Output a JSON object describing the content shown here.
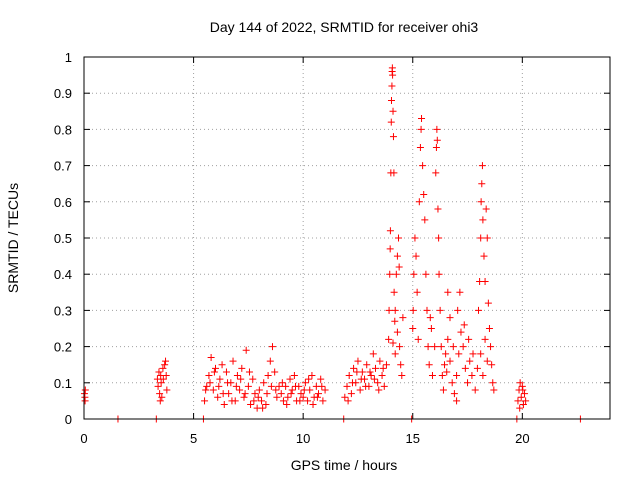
{
  "chart_data": {
    "type": "scatter",
    "title": "Day 144 of 2022, SRMTID for receiver ohi3",
    "xlabel": "GPS time / hours",
    "ylabel": "SRMTID / TECUs",
    "xlim": [
      0,
      24
    ],
    "ylim": [
      0,
      1
    ],
    "xticks": [
      0,
      5,
      10,
      15,
      20
    ],
    "xtick_labels": [
      "0",
      "5",
      "10",
      "15",
      "20"
    ],
    "yticks": [
      0,
      0.1,
      0.2,
      0.3,
      0.4,
      0.5,
      0.6,
      0.7,
      0.8,
      0.9,
      1
    ],
    "ytick_labels": [
      "0",
      "0.1",
      "0.2",
      "0.3",
      "0.4",
      "0.5",
      "0.6",
      "0.7",
      "0.8",
      "0.9",
      "1"
    ],
    "grid": true,
    "marker": "+",
    "color": "#ff0000",
    "series": [
      {
        "name": "SRMTID",
        "points": [
          [
            0.02,
            0.07
          ],
          [
            0.04,
            0.06
          ],
          [
            0.06,
            0.08
          ],
          [
            0.05,
            0.05
          ],
          [
            1.55,
            0.0
          ],
          [
            3.3,
            0.0
          ],
          [
            5.45,
            0.0
          ],
          [
            11.85,
            0.0
          ],
          [
            14.95,
            0.0
          ],
          [
            19.75,
            0.0
          ],
          [
            22.65,
            0.0
          ],
          [
            3.35,
            0.11
          ],
          [
            3.38,
            0.09
          ],
          [
            3.42,
            0.13
          ],
          [
            3.45,
            0.07
          ],
          [
            3.5,
            0.12
          ],
          [
            3.52,
            0.1
          ],
          [
            3.55,
            0.06
          ],
          [
            3.6,
            0.14
          ],
          [
            3.62,
            0.11
          ],
          [
            3.68,
            0.15
          ],
          [
            3.72,
            0.16
          ],
          [
            3.75,
            0.12
          ],
          [
            3.78,
            0.08
          ],
          [
            3.48,
            0.05
          ],
          [
            5.5,
            0.05
          ],
          [
            5.6,
            0.09
          ],
          [
            5.7,
            0.12
          ],
          [
            5.8,
            0.17
          ],
          [
            5.9,
            0.08
          ],
          [
            6.0,
            0.14
          ],
          [
            6.1,
            0.06
          ],
          [
            6.2,
            0.11
          ],
          [
            6.3,
            0.15
          ],
          [
            6.4,
            0.04
          ],
          [
            6.5,
            0.13
          ],
          [
            6.6,
            0.07
          ],
          [
            6.7,
            0.1
          ],
          [
            6.8,
            0.16
          ],
          [
            6.9,
            0.05
          ],
          [
            7.0,
            0.12
          ],
          [
            7.1,
            0.08
          ],
          [
            7.2,
            0.14
          ],
          [
            7.3,
            0.06
          ],
          [
            7.4,
            0.19
          ],
          [
            7.5,
            0.09
          ],
          [
            7.6,
            0.04
          ],
          [
            7.7,
            0.11
          ],
          [
            7.8,
            0.07
          ],
          [
            7.9,
            0.03
          ],
          [
            8.0,
            0.08
          ],
          [
            8.1,
            0.05
          ],
          [
            8.2,
            0.1
          ],
          [
            8.3,
            0.04
          ],
          [
            8.4,
            0.12
          ],
          [
            8.5,
            0.16
          ],
          [
            8.6,
            0.2
          ],
          [
            8.7,
            0.13
          ],
          [
            8.8,
            0.06
          ],
          [
            8.9,
            0.09
          ],
          [
            5.55,
            0.08
          ],
          [
            5.75,
            0.1
          ],
          [
            5.95,
            0.13
          ],
          [
            6.15,
            0.09
          ],
          [
            6.35,
            0.07
          ],
          [
            6.55,
            0.1
          ],
          [
            6.75,
            0.05
          ],
          [
            6.95,
            0.09
          ],
          [
            7.15,
            0.11
          ],
          [
            7.35,
            0.07
          ],
          [
            7.55,
            0.13
          ],
          [
            7.75,
            0.05
          ],
          [
            7.95,
            0.06
          ],
          [
            8.15,
            0.03
          ],
          [
            8.35,
            0.07
          ],
          [
            8.55,
            0.09
          ],
          [
            8.75,
            0.08
          ],
          [
            9.0,
            0.07
          ],
          [
            9.1,
            0.05
          ],
          [
            9.2,
            0.09
          ],
          [
            9.3,
            0.06
          ],
          [
            9.4,
            0.11
          ],
          [
            9.5,
            0.08
          ],
          [
            9.6,
            0.12
          ],
          [
            9.7,
            0.05
          ],
          [
            9.8,
            0.09
          ],
          [
            9.9,
            0.07
          ],
          [
            10.0,
            0.06
          ],
          [
            10.1,
            0.1
          ],
          [
            10.2,
            0.05
          ],
          [
            10.3,
            0.08
          ],
          [
            10.4,
            0.12
          ],
          [
            10.5,
            0.06
          ],
          [
            10.6,
            0.09
          ],
          [
            10.7,
            0.07
          ],
          [
            10.8,
            0.11
          ],
          [
            10.9,
            0.05
          ],
          [
            11.0,
            0.08
          ],
          [
            9.05,
            0.1
          ],
          [
            9.25,
            0.04
          ],
          [
            9.45,
            0.07
          ],
          [
            9.65,
            0.09
          ],
          [
            9.85,
            0.05
          ],
          [
            10.05,
            0.08
          ],
          [
            10.25,
            0.11
          ],
          [
            10.45,
            0.04
          ],
          [
            10.65,
            0.06
          ],
          [
            10.85,
            0.09
          ],
          [
            11.9,
            0.06
          ],
          [
            12.0,
            0.09
          ],
          [
            12.1,
            0.12
          ],
          [
            12.2,
            0.07
          ],
          [
            12.3,
            0.14
          ],
          [
            12.4,
            0.1
          ],
          [
            12.5,
            0.16
          ],
          [
            12.6,
            0.08
          ],
          [
            12.7,
            0.13
          ],
          [
            12.8,
            0.11
          ],
          [
            12.9,
            0.15
          ],
          [
            13.0,
            0.09
          ],
          [
            13.1,
            0.12
          ],
          [
            13.2,
            0.18
          ],
          [
            13.3,
            0.14
          ],
          [
            13.4,
            0.1
          ],
          [
            13.5,
            0.16
          ],
          [
            13.6,
            0.12
          ],
          [
            13.7,
            0.09
          ],
          [
            13.8,
            0.15
          ],
          [
            12.05,
            0.05
          ],
          [
            12.25,
            0.1
          ],
          [
            12.45,
            0.13
          ],
          [
            12.65,
            0.11
          ],
          [
            12.85,
            0.09
          ],
          [
            13.05,
            0.13
          ],
          [
            13.25,
            0.11
          ],
          [
            13.45,
            0.08
          ],
          [
            13.65,
            0.14
          ],
          [
            13.9,
            0.22
          ],
          [
            13.92,
            0.3
          ],
          [
            13.95,
            0.4
          ],
          [
            13.97,
            0.47
          ],
          [
            13.98,
            0.52
          ],
          [
            14.0,
            0.68
          ],
          [
            14.02,
            0.82
          ],
          [
            14.03,
            0.88
          ],
          [
            14.05,
            0.92
          ],
          [
            14.06,
            0.96
          ],
          [
            14.07,
            0.97
          ],
          [
            14.08,
            0.95
          ],
          [
            14.1,
            0.85
          ],
          [
            14.12,
            0.78
          ],
          [
            14.14,
            0.68
          ],
          [
            14.15,
            0.35
          ],
          [
            14.18,
            0.27
          ],
          [
            14.2,
            0.3
          ],
          [
            14.25,
            0.4
          ],
          [
            14.3,
            0.45
          ],
          [
            14.35,
            0.5
          ],
          [
            14.38,
            0.42
          ],
          [
            14.4,
            0.2
          ],
          [
            14.45,
            0.15
          ],
          [
            14.5,
            0.12
          ],
          [
            14.55,
            0.28
          ],
          [
            14.3,
            0.24
          ],
          [
            14.2,
            0.18
          ],
          [
            14.1,
            0.21
          ],
          [
            15.0,
            0.25
          ],
          [
            15.02,
            0.3
          ],
          [
            15.05,
            0.4
          ],
          [
            15.1,
            0.5
          ],
          [
            15.15,
            0.45
          ],
          [
            15.2,
            0.35
          ],
          [
            15.25,
            0.22
          ],
          [
            15.3,
            0.6
          ],
          [
            15.35,
            0.75
          ],
          [
            15.38,
            0.8
          ],
          [
            15.4,
            0.83
          ],
          [
            15.45,
            0.7
          ],
          [
            15.5,
            0.62
          ],
          [
            15.55,
            0.55
          ],
          [
            15.6,
            0.4
          ],
          [
            15.65,
            0.3
          ],
          [
            15.7,
            0.2
          ],
          [
            15.75,
            0.15
          ],
          [
            15.8,
            0.28
          ],
          [
            15.85,
            0.25
          ],
          [
            15.9,
            0.12
          ],
          [
            16.0,
            0.2
          ],
          [
            16.05,
            0.68
          ],
          [
            16.08,
            0.75
          ],
          [
            16.1,
            0.8
          ],
          [
            16.12,
            0.77
          ],
          [
            16.15,
            0.58
          ],
          [
            16.18,
            0.5
          ],
          [
            16.2,
            0.4
          ],
          [
            16.25,
            0.3
          ],
          [
            16.3,
            0.2
          ],
          [
            16.35,
            0.12
          ],
          [
            16.4,
            0.08
          ],
          [
            16.45,
            0.15
          ],
          [
            16.5,
            0.18
          ],
          [
            16.55,
            0.13
          ],
          [
            16.6,
            0.22
          ],
          [
            16.7,
            0.16
          ],
          [
            16.8,
            0.1
          ],
          [
            16.9,
            0.07
          ],
          [
            17.0,
            0.12
          ],
          [
            17.1,
            0.18
          ],
          [
            17.2,
            0.24
          ],
          [
            17.3,
            0.2
          ],
          [
            17.4,
            0.14
          ],
          [
            17.5,
            0.1
          ],
          [
            17.6,
            0.16
          ],
          [
            17.7,
            0.12
          ],
          [
            16.6,
            0.35
          ],
          [
            16.7,
            0.28
          ],
          [
            16.85,
            0.2
          ],
          [
            17.0,
            0.05
          ],
          [
            17.05,
            0.3
          ],
          [
            17.15,
            0.35
          ],
          [
            17.35,
            0.26
          ],
          [
            17.55,
            0.22
          ],
          [
            17.75,
            0.18
          ],
          [
            17.85,
            0.08
          ],
          [
            17.95,
            0.14
          ],
          [
            18.0,
            0.3
          ],
          [
            18.05,
            0.38
          ],
          [
            18.1,
            0.5
          ],
          [
            18.12,
            0.6
          ],
          [
            18.15,
            0.65
          ],
          [
            18.18,
            0.7
          ],
          [
            18.2,
            0.55
          ],
          [
            18.25,
            0.45
          ],
          [
            18.3,
            0.38
          ],
          [
            18.35,
            0.58
          ],
          [
            18.4,
            0.5
          ],
          [
            18.45,
            0.32
          ],
          [
            18.5,
            0.25
          ],
          [
            18.55,
            0.2
          ],
          [
            18.6,
            0.15
          ],
          [
            18.65,
            0.1
          ],
          [
            18.7,
            0.08
          ],
          [
            18.1,
            0.18
          ],
          [
            18.2,
            0.12
          ],
          [
            18.3,
            0.22
          ],
          [
            18.4,
            0.16
          ],
          [
            19.8,
            0.05
          ],
          [
            19.85,
            0.08
          ],
          [
            19.9,
            0.1
          ],
          [
            19.95,
            0.06
          ],
          [
            20.0,
            0.09
          ],
          [
            20.05,
            0.04
          ],
          [
            20.1,
            0.07
          ],
          [
            20.15,
            0.05
          ],
          [
            19.88,
            0.03
          ],
          [
            20.02,
            0.08
          ]
        ]
      }
    ]
  }
}
